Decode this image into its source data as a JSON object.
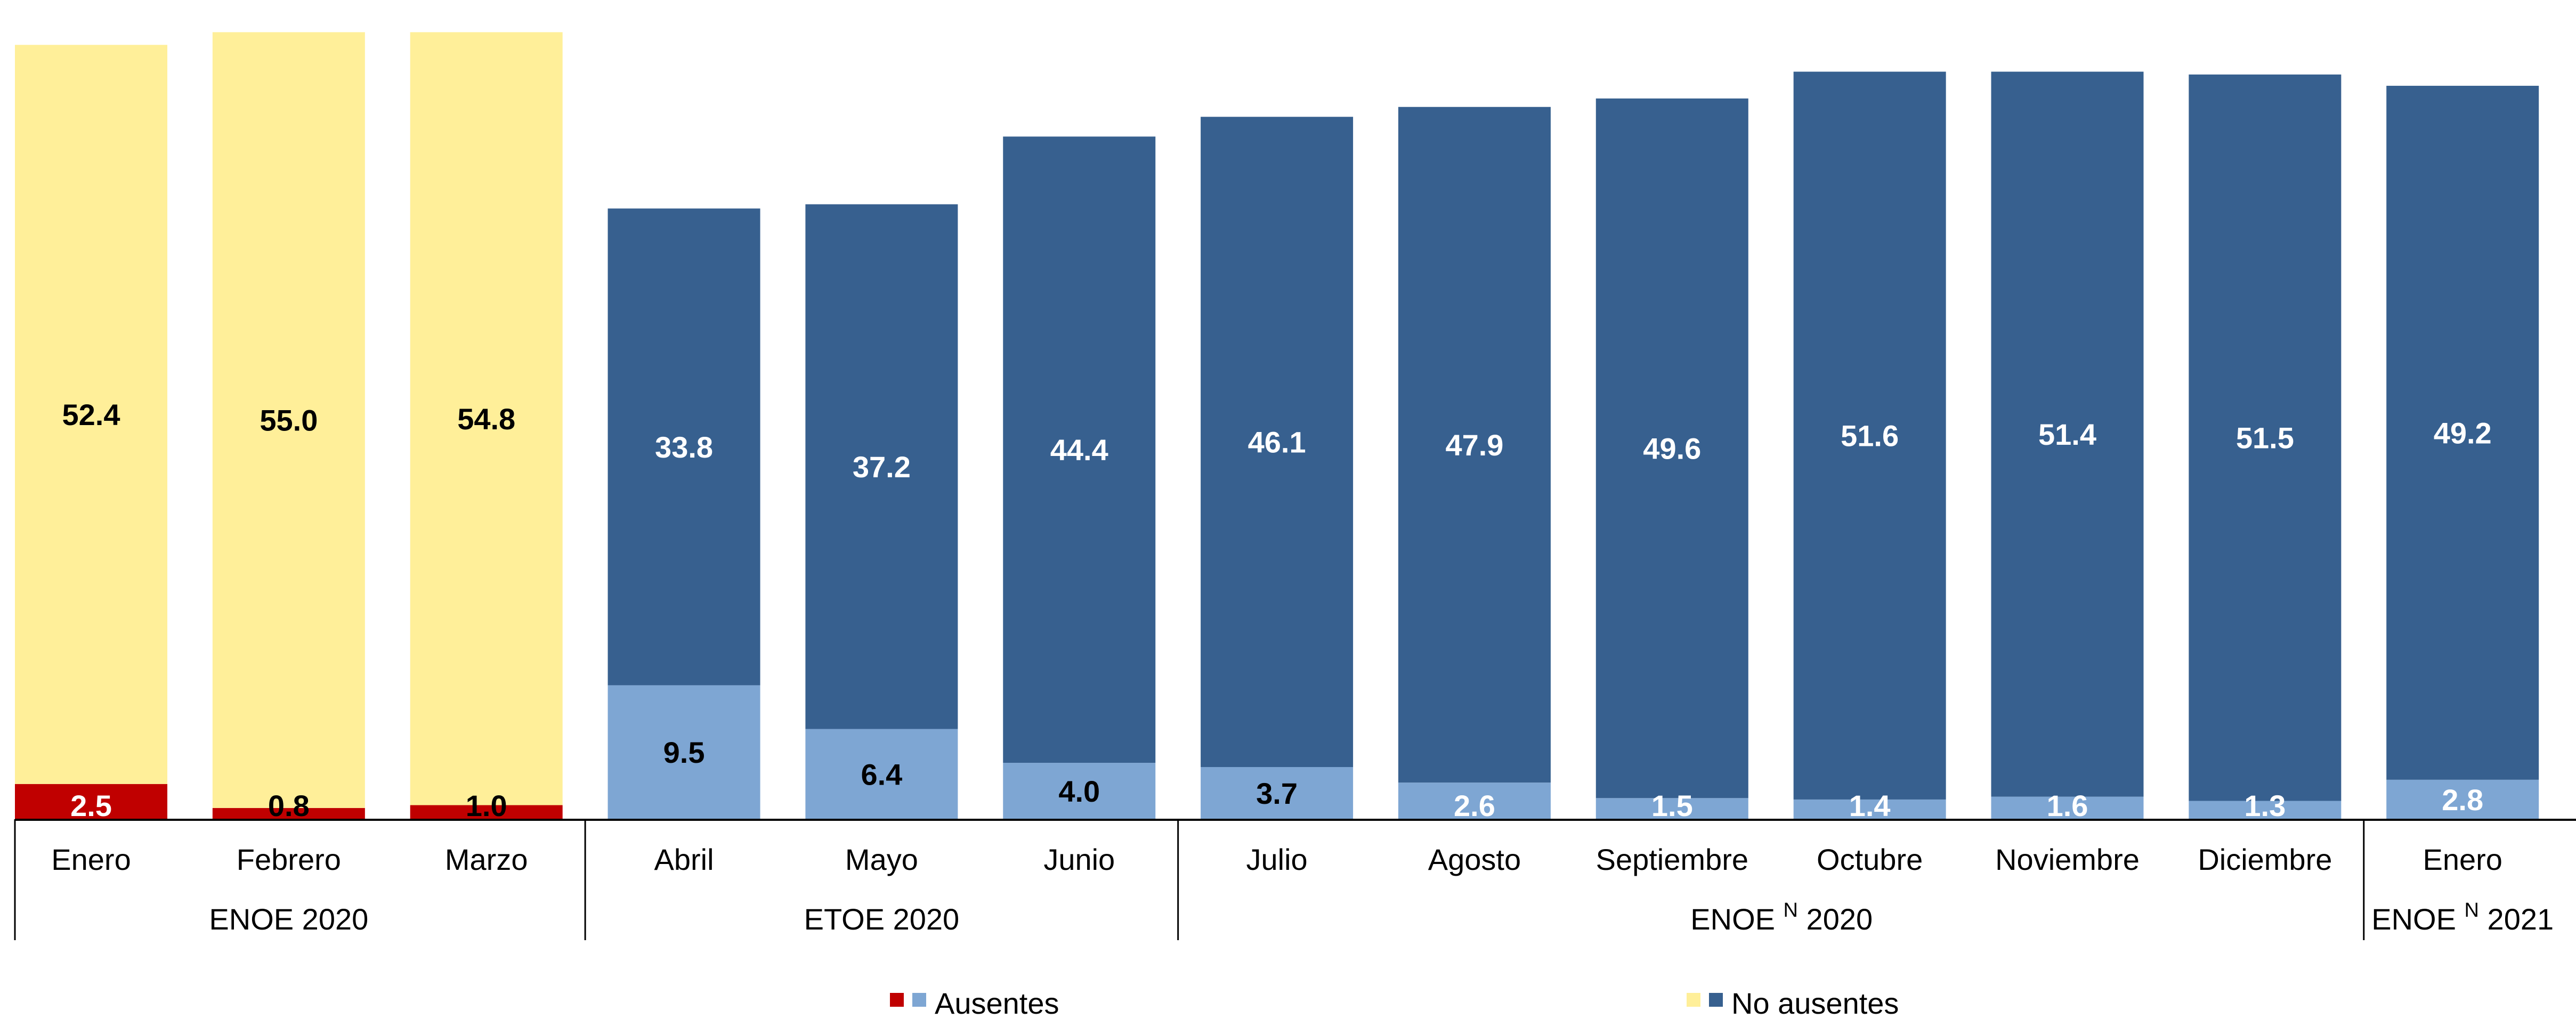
{
  "chart_data": {
    "type": "bar",
    "stacked": true,
    "categories": [
      "Enero",
      "Febrero",
      "Marzo",
      "Abril",
      "Mayo",
      "Junio",
      "Julio",
      "Agosto",
      "Septiembre",
      "Octubre",
      "Noviembre",
      "Diciembre",
      "Enero"
    ],
    "groups": [
      {
        "name": "ENOE 2020",
        "base": "ENOE",
        "sup": "",
        "year": "2020",
        "start": 0,
        "end": 2
      },
      {
        "name": "ETOE 2020",
        "base": "ETOE",
        "sup": "",
        "year": "2020",
        "start": 3,
        "end": 5
      },
      {
        "name": "ENOE N 2020",
        "base": "ENOE",
        "sup": "N",
        "year": "2020",
        "start": 6,
        "end": 11
      },
      {
        "name": "ENOE N 2021",
        "base": "ENOE",
        "sup": "N",
        "year": "2021",
        "start": 12,
        "end": 12
      }
    ],
    "series": [
      {
        "name": "Ausentes",
        "values": [
          2.5,
          0.8,
          1.0,
          9.5,
          6.4,
          4.0,
          3.7,
          2.6,
          1.5,
          1.4,
          1.6,
          1.3,
          2.8
        ]
      },
      {
        "name": "No ausentes",
        "values": [
          52.4,
          55.0,
          54.8,
          33.8,
          37.2,
          44.4,
          46.1,
          47.9,
          49.6,
          51.6,
          51.4,
          51.5,
          49.2
        ]
      }
    ],
    "labels": {
      "ausentes": [
        "2.5",
        "0.8",
        "1.0",
        "9.5",
        "6.4",
        "4.0",
        "3.7",
        "2.6",
        "1.5",
        "1.4",
        "1.6",
        "1.3",
        "2.8"
      ],
      "no_ausentes": [
        "52.4",
        "55.0",
        "54.8",
        "33.8",
        "37.2",
        "44.4",
        "46.1",
        "47.9",
        "49.6",
        "51.6",
        "51.4",
        "51.5",
        "49.2"
      ]
    },
    "colors": {
      "ausentes_enoe": "#C00000",
      "no_ausentes_enoe": "#FFEF99",
      "ausentes_etoe": "#7EA6D3",
      "no_ausentes_etoe": "#37608F"
    },
    "legend": [
      {
        "label": "Ausentes",
        "colors": [
          "#C00000",
          "#7EA6D3"
        ]
      },
      {
        "label": "No ausentes",
        "colors": [
          "#FFEF99",
          "#37608F"
        ]
      }
    ],
    "legend_position": "bottom",
    "ylim": [
      0,
      58
    ]
  }
}
